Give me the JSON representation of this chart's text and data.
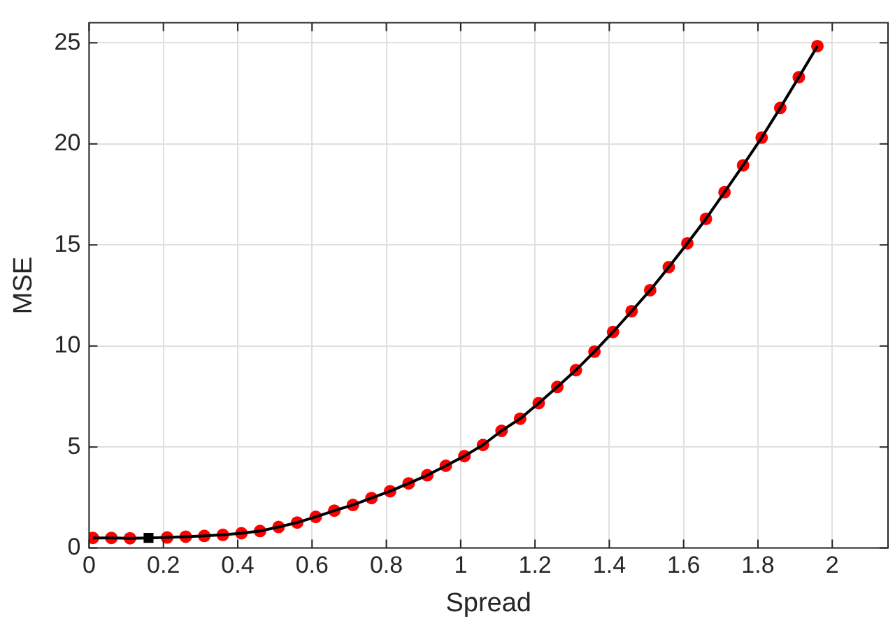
{
  "chart_data": {
    "type": "line",
    "xlabel": "Spread",
    "ylabel": "MSE",
    "xlim": [
      0,
      2.15
    ],
    "xticks": [
      0,
      0.2,
      0.4,
      0.6,
      0.8,
      1,
      1.2,
      1.4,
      1.6,
      1.8,
      2
    ],
    "ylim": [
      0,
      26
    ],
    "yticks": [
      0,
      5,
      10,
      15,
      20,
      25
    ],
    "grid": true,
    "legend": false,
    "x": [
      0.01,
      0.06,
      0.11,
      0.16,
      0.21,
      0.26,
      0.31,
      0.36,
      0.41,
      0.46,
      0.51,
      0.56,
      0.61,
      0.66,
      0.71,
      0.76,
      0.81,
      0.86,
      0.91,
      0.96,
      1.01,
      1.06,
      1.11,
      1.16,
      1.21,
      1.26,
      1.31,
      1.36,
      1.41,
      1.46,
      1.51,
      1.56,
      1.61,
      1.66,
      1.71,
      1.76,
      1.81,
      1.86,
      1.91,
      1.96
    ],
    "series": [
      {
        "type": "line",
        "color": "#000000",
        "marker": "none",
        "values": [
          0.5,
          0.5,
          0.48,
          0.5,
          0.52,
          0.56,
          0.6,
          0.65,
          0.73,
          0.84,
          1.04,
          1.26,
          1.54,
          1.85,
          2.13,
          2.47,
          2.81,
          3.2,
          3.6,
          4.07,
          4.55,
          5.1,
          5.8,
          6.4,
          7.17,
          7.97,
          8.8,
          9.72,
          10.69,
          11.72,
          12.76,
          13.9,
          15.08,
          16.29,
          17.61,
          18.94,
          20.31,
          21.78,
          23.3,
          24.84
        ]
      },
      {
        "type": "scatter",
        "color": "#ff0000",
        "marker": "circle",
        "values": [
          0.5,
          0.5,
          0.48,
          null,
          0.52,
          0.56,
          0.6,
          0.65,
          0.73,
          0.84,
          1.04,
          1.26,
          1.54,
          1.85,
          2.13,
          2.47,
          2.81,
          3.2,
          3.6,
          4.07,
          4.55,
          5.1,
          5.8,
          6.4,
          7.17,
          7.97,
          8.8,
          9.72,
          10.69,
          11.72,
          12.76,
          13.9,
          15.08,
          16.29,
          17.61,
          18.94,
          20.31,
          21.78,
          23.3,
          24.84
        ]
      },
      {
        "type": "scatter",
        "color": "#000000",
        "marker": "square",
        "x": [
          0.16
        ],
        "values": [
          0.5
        ]
      }
    ]
  }
}
